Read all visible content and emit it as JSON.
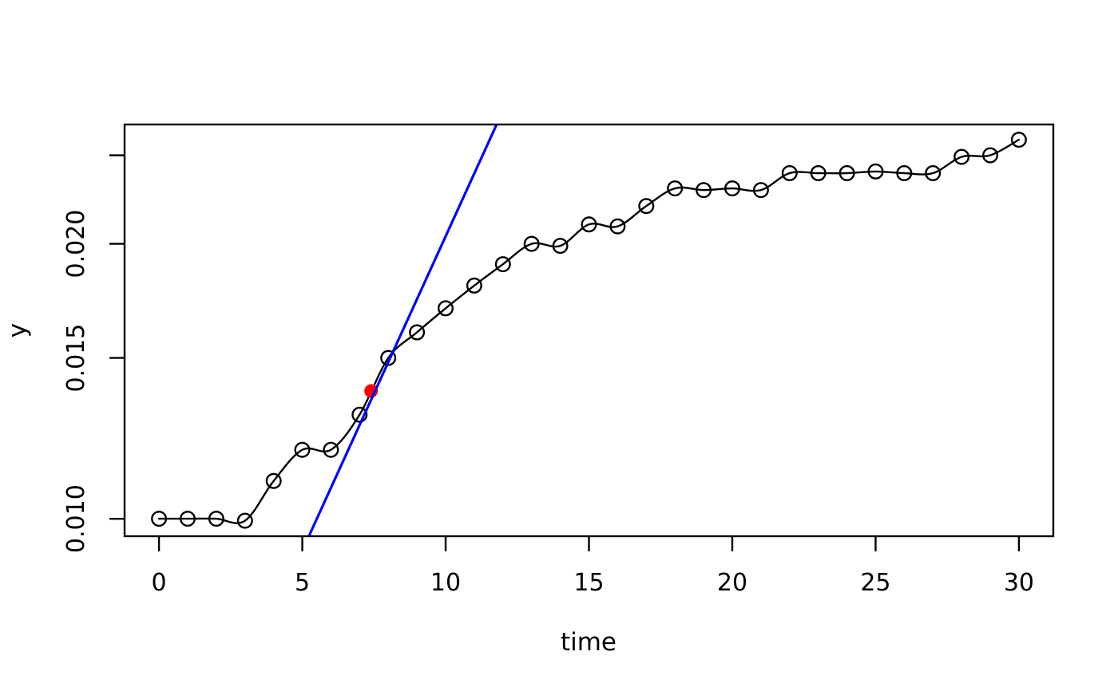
{
  "chart_data": {
    "type": "line",
    "title": "",
    "xlabel": "time",
    "ylabel": "y",
    "x_scale": "linear",
    "y_scale": "log10",
    "xlim": [
      -1.2,
      31.2
    ],
    "ylim": [
      0.00957,
      0.02702
    ],
    "grid": false,
    "legend": false,
    "x_ticks": [
      {
        "value": 0,
        "label": "0"
      },
      {
        "value": 5,
        "label": "5"
      },
      {
        "value": 10,
        "label": "10"
      },
      {
        "value": 15,
        "label": "15"
      },
      {
        "value": 20,
        "label": "20"
      },
      {
        "value": 25,
        "label": "25"
      },
      {
        "value": 30,
        "label": "30"
      }
    ],
    "y_ticks": [
      {
        "value": 0.01,
        "label": "0.010"
      },
      {
        "value": 0.015,
        "label": "0.015"
      },
      {
        "value": 0.02,
        "label": "0.020"
      },
      {
        "value": 0.025,
        "label": ""
      }
    ],
    "x": [
      0,
      1,
      2,
      3,
      4,
      5,
      6,
      7,
      8,
      9,
      10,
      11,
      12,
      13,
      14,
      15,
      16,
      17,
      18,
      19,
      20,
      21,
      22,
      23,
      24,
      25,
      26,
      27,
      28,
      29,
      30
    ],
    "series": [
      {
        "name": "y",
        "color": "#000000",
        "marker": "open-circle",
        "line_style": "smooth",
        "values": [
          0.01,
          0.01,
          0.01,
          0.00995,
          0.011,
          0.0119,
          0.0119,
          0.013,
          0.015,
          0.016,
          0.017,
          0.018,
          0.019,
          0.02,
          0.0199,
          0.021,
          0.0209,
          0.022,
          0.023,
          0.0229,
          0.023,
          0.0229,
          0.0239,
          0.0239,
          0.0239,
          0.024,
          0.0239,
          0.0239,
          0.0249,
          0.025,
          0.026
        ]
      }
    ],
    "annotations": {
      "highlight_point": {
        "x": 7.4,
        "y": 0.0138,
        "color": "#ff0000"
      },
      "tangent_line": {
        "x1": 5.23,
        "y1": 0.00957,
        "x2": 11.78,
        "y2": 0.02702,
        "color": "#0000ff"
      }
    }
  }
}
